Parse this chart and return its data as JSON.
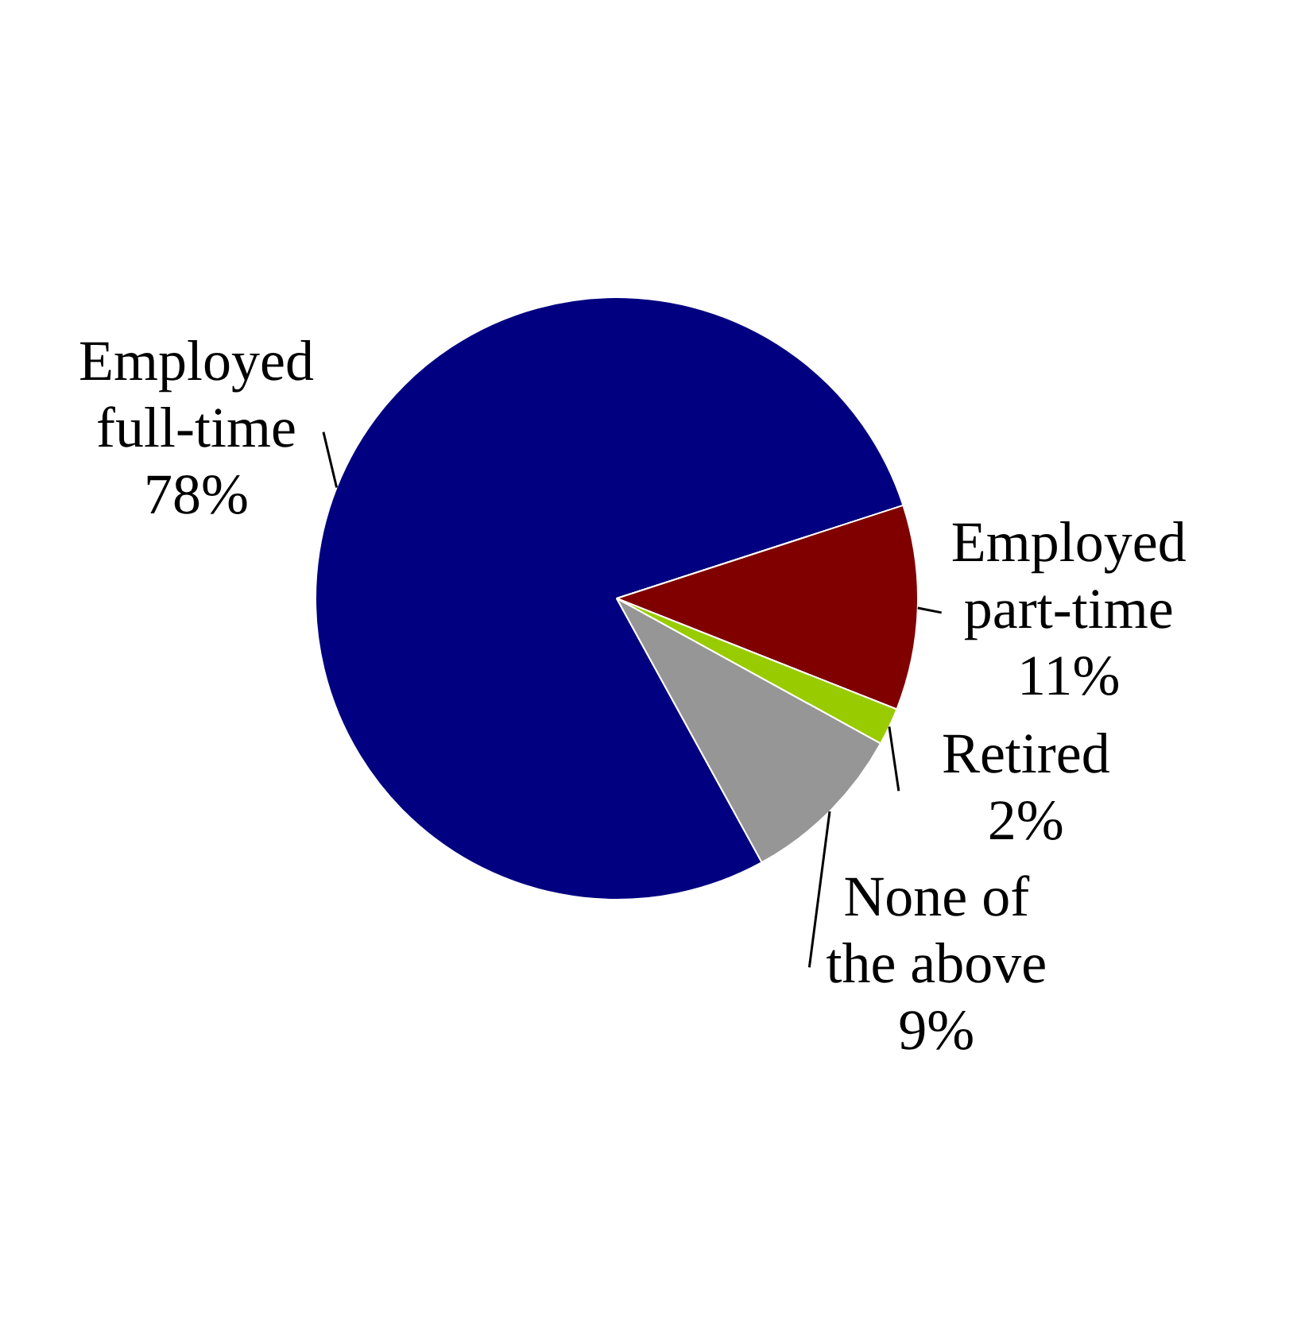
{
  "chart_data": {
    "type": "pie",
    "categories": [
      "Employed full-time",
      "Employed part-time",
      "Retired",
      "None of the above"
    ],
    "values": [
      78,
      11,
      2,
      9
    ],
    "value_labels": [
      "78%",
      "11%",
      "2%",
      "9%"
    ],
    "colors": [
      "#000080",
      "#800000",
      "#99cc00",
      "#969696"
    ],
    "legend": false
  }
}
